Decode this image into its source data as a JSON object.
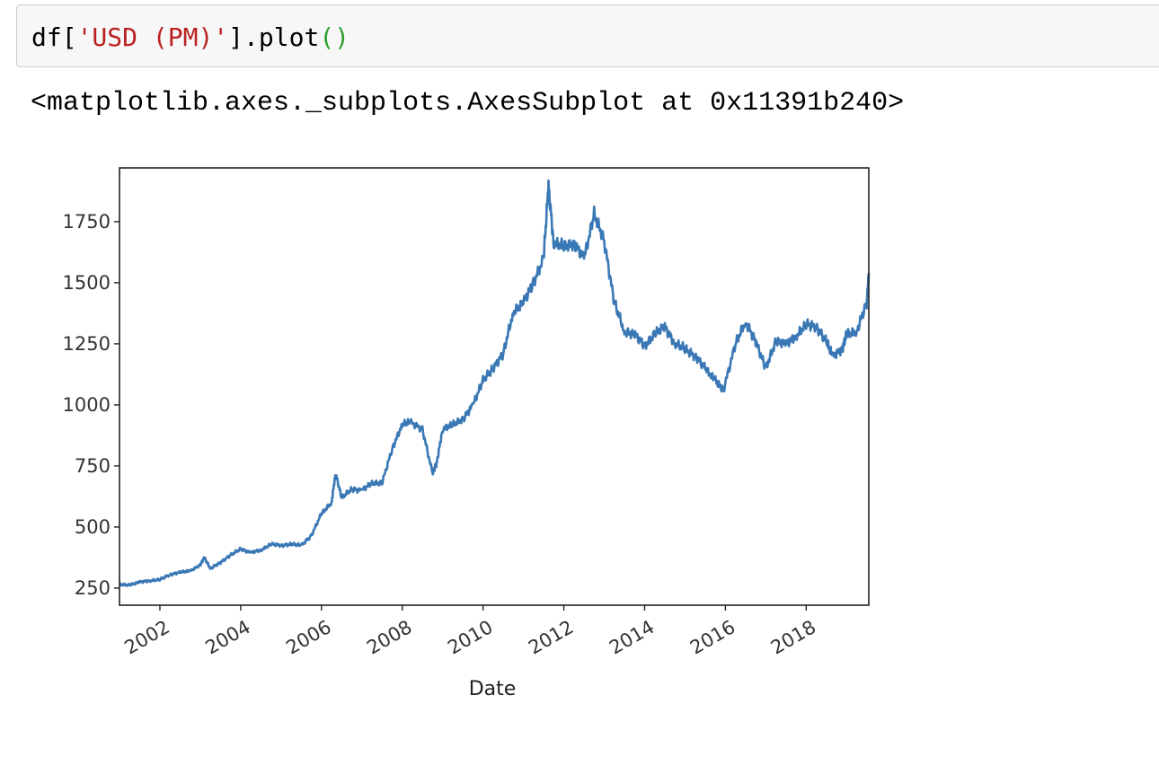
{
  "input_cell": {
    "code": {
      "prefix": "df[",
      "string": "'USD (PM)'",
      "middle": "].plot",
      "parens": "()"
    }
  },
  "output": {
    "repr": "<matplotlib.axes._subplots.AxesSubplot at 0x11391b240>"
  },
  "chart_data": {
    "type": "line",
    "title": "",
    "xlabel": "Date",
    "ylabel": "",
    "x_ticks": [
      "2002",
      "2004",
      "2006",
      "2008",
      "2010",
      "2012",
      "2014",
      "2016",
      "2018"
    ],
    "y_ticks": [
      250,
      500,
      750,
      1000,
      1250,
      1500,
      1750
    ],
    "xlim": [
      2001.0,
      2019.55
    ],
    "ylim": [
      180,
      1970
    ],
    "grid": false,
    "legend": "none",
    "line_color": "#3a78b5",
    "series": [
      {
        "x": [
          2001.0,
          2001.25,
          2001.5,
          2001.75,
          2002.0,
          2002.25,
          2002.5,
          2002.75,
          2003.0,
          2003.1,
          2003.25,
          2003.5,
          2003.75,
          2004.0,
          2004.25,
          2004.5,
          2004.75,
          2005.0,
          2005.25,
          2005.5,
          2005.75,
          2006.0,
          2006.25,
          2006.35,
          2006.5,
          2006.75,
          2007.0,
          2007.25,
          2007.5,
          2007.75,
          2008.0,
          2008.2,
          2008.5,
          2008.75,
          2008.85,
          2009.0,
          2009.25,
          2009.5,
          2009.75,
          2010.0,
          2010.25,
          2010.5,
          2010.75,
          2011.0,
          2011.25,
          2011.5,
          2011.62,
          2011.75,
          2012.0,
          2012.25,
          2012.5,
          2012.75,
          2013.0,
          2013.25,
          2013.5,
          2013.75,
          2014.0,
          2014.25,
          2014.5,
          2014.75,
          2015.0,
          2015.25,
          2015.5,
          2015.75,
          2015.95,
          2016.25,
          2016.5,
          2016.75,
          2017.0,
          2017.25,
          2017.5,
          2017.75,
          2018.0,
          2018.25,
          2018.5,
          2018.65,
          2018.9,
          2019.0,
          2019.25,
          2019.5,
          2019.55
        ],
        "y": [
          265,
          262,
          275,
          280,
          285,
          305,
          315,
          320,
          345,
          375,
          330,
          355,
          385,
          410,
          395,
          405,
          430,
          425,
          430,
          425,
          465,
          555,
          600,
          720,
          620,
          655,
          650,
          680,
          680,
          820,
          920,
          930,
          900,
          720,
          760,
          900,
          920,
          940,
          1000,
          1100,
          1150,
          1210,
          1380,
          1420,
          1500,
          1600,
          1900,
          1660,
          1650,
          1660,
          1600,
          1780,
          1670,
          1420,
          1300,
          1290,
          1240,
          1290,
          1320,
          1250,
          1230,
          1200,
          1150,
          1100,
          1060,
          1250,
          1340,
          1260,
          1150,
          1260,
          1250,
          1280,
          1330,
          1320,
          1260,
          1200,
          1230,
          1290,
          1300,
          1420,
          1540
        ]
      }
    ]
  }
}
